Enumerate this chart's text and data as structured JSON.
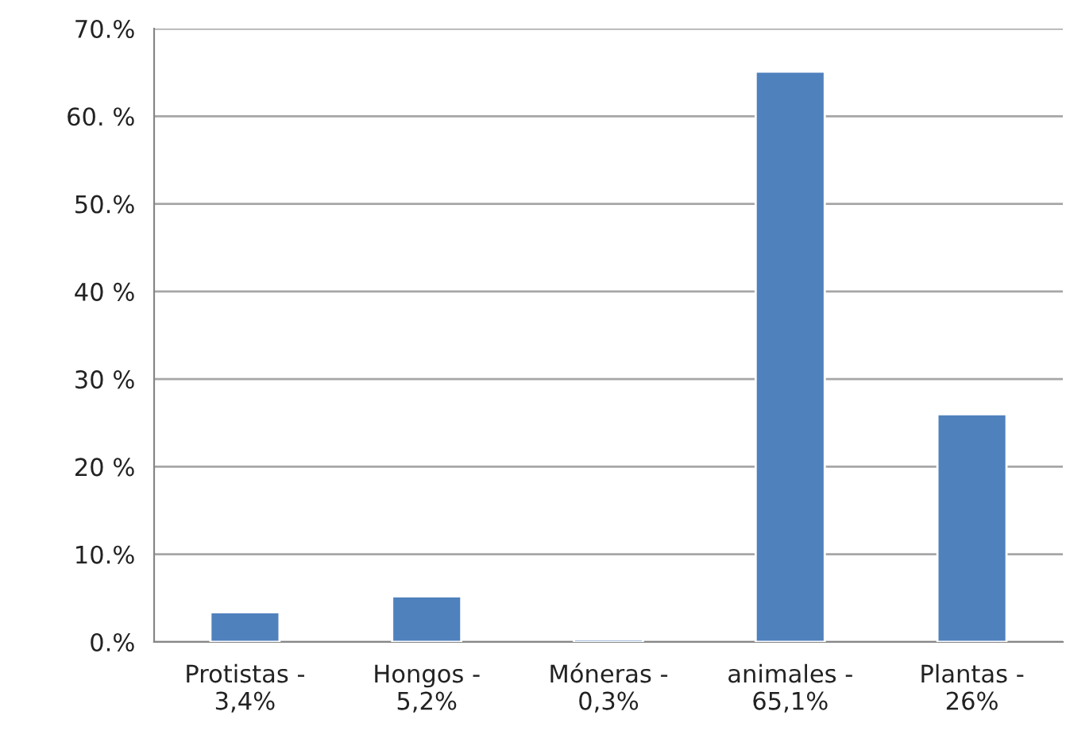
{
  "chart_data": {
    "type": "bar",
    "categories": [
      "Protistas -\n3,4%",
      "Hongos -\n5,2%",
      "Móneras -\n0,3%",
      "animales -\n65,1%",
      "Plantas -\n26%"
    ],
    "values": [
      3.4,
      5.2,
      0.3,
      65.1,
      26
    ],
    "color": "#4f81bd",
    "ylim": [
      0,
      70
    ],
    "yticks": [
      {
        "value": 0,
        "label": "0.%"
      },
      {
        "value": 10,
        "label": "10.%"
      },
      {
        "value": 20,
        "label": "20 %"
      },
      {
        "value": 30,
        "label": "30 %"
      },
      {
        "value": 40,
        "label": "40 %"
      },
      {
        "value": 50,
        "label": "50.%"
      },
      {
        "value": 60,
        "label": "60. %"
      },
      {
        "value": 70,
        "label": "70.%"
      }
    ],
    "grid": "y"
  }
}
